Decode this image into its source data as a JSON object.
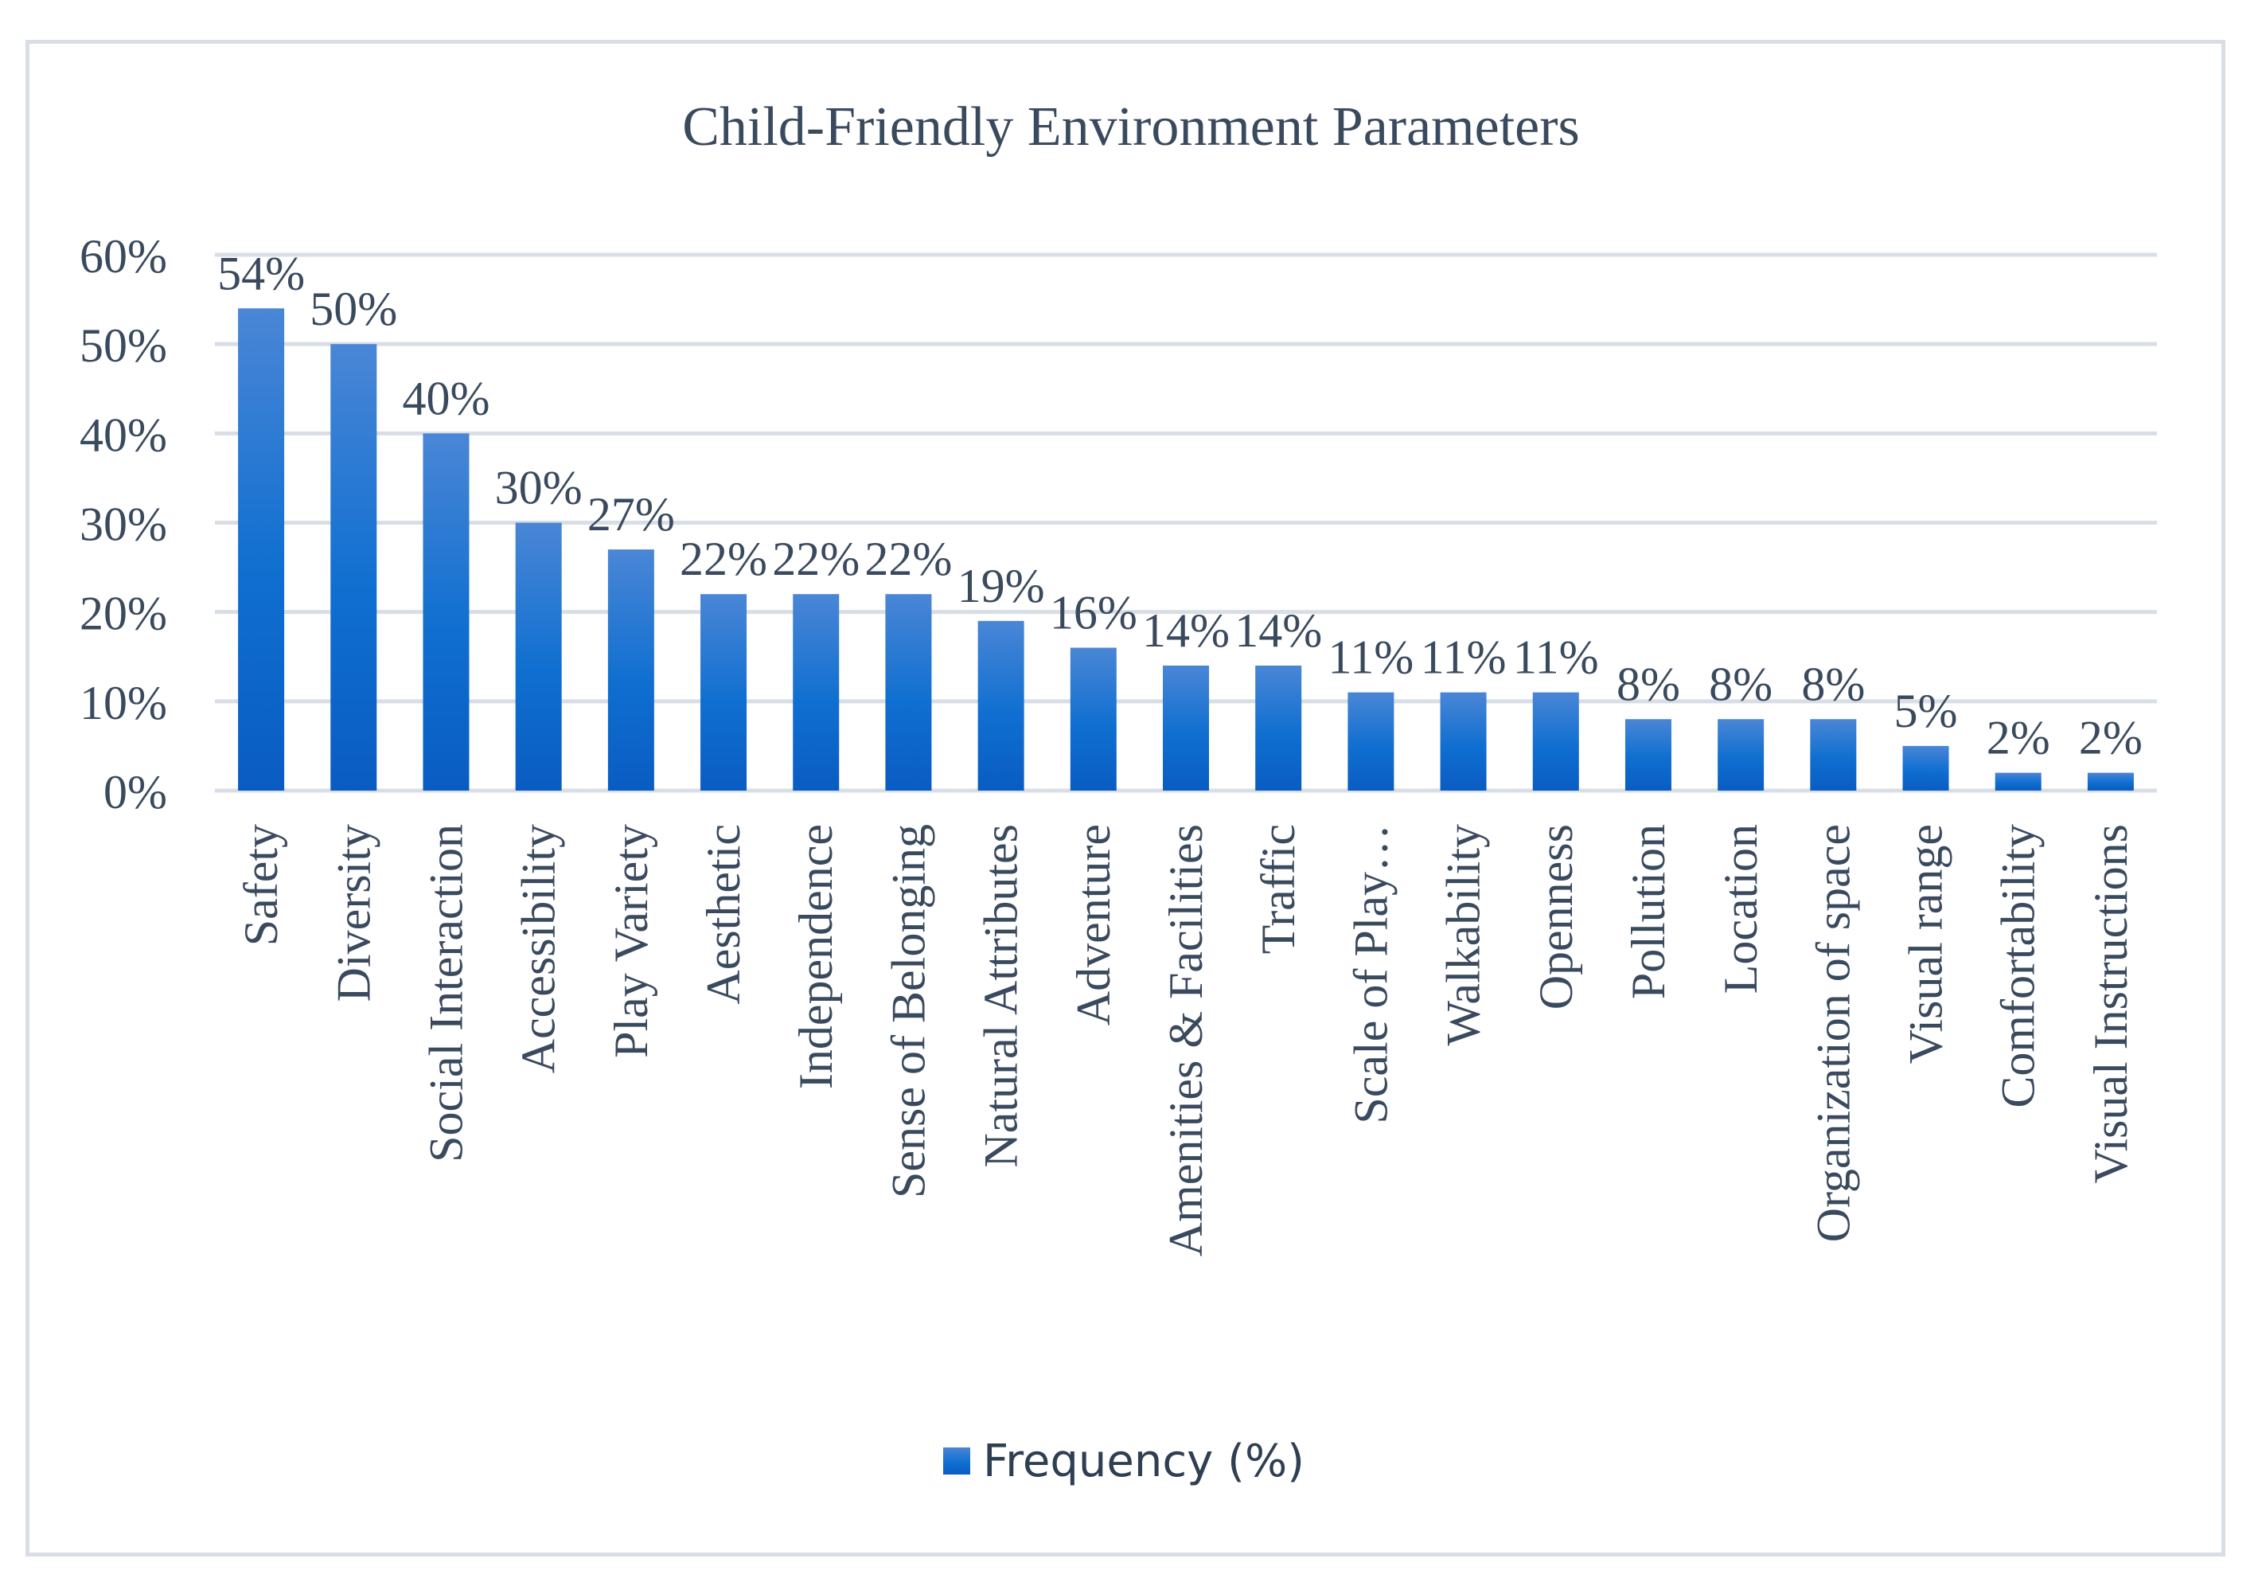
{
  "chart_data": {
    "type": "bar",
    "title": "Child-Friendly Environment Parameters",
    "xlabel": "",
    "ylabel": "",
    "ylim": [
      0,
      60
    ],
    "yticks": [
      "0%",
      "10%",
      "20%",
      "30%",
      "40%",
      "50%",
      "60%"
    ],
    "grid": true,
    "legend_position": "bottom",
    "categories": [
      "Safety",
      "Diversity",
      "Social Interaction",
      "Accessibility",
      "Play Variety",
      "Aesthetic",
      "Independence",
      "Sense of Belonging",
      "Natural Attributes",
      "Adventure",
      "Amenities &  Facilities",
      "Traffic",
      "Scale of Play…",
      "Walkability",
      "Openness",
      "Pollution",
      "Location",
      "Organization of space",
      "Visual range",
      "Comfortability",
      "Visual Instructions"
    ],
    "series": [
      {
        "name": "Frequency (%)",
        "values": [
          54,
          50,
          40,
          30,
          27,
          22,
          22,
          22,
          19,
          16,
          14,
          14,
          11,
          11,
          11,
          8,
          8,
          8,
          5,
          2,
          2
        ],
        "labels": [
          "54%",
          "50%",
          "40%",
          "30%",
          "27%",
          "22%",
          "22%",
          "22%",
          "19%",
          "16%",
          "14%",
          "14%",
          "11%",
          "11%",
          "11%",
          "8%",
          "8%",
          "8%",
          "5%",
          "2%",
          "2%"
        ]
      }
    ],
    "colors": {
      "bar_top": "#4a86d6",
      "bar_mid": "#0f6fd0",
      "bar_bottom": "#0a5cc2",
      "text": "#3a4a5e",
      "grid": "#d9dee6"
    }
  }
}
